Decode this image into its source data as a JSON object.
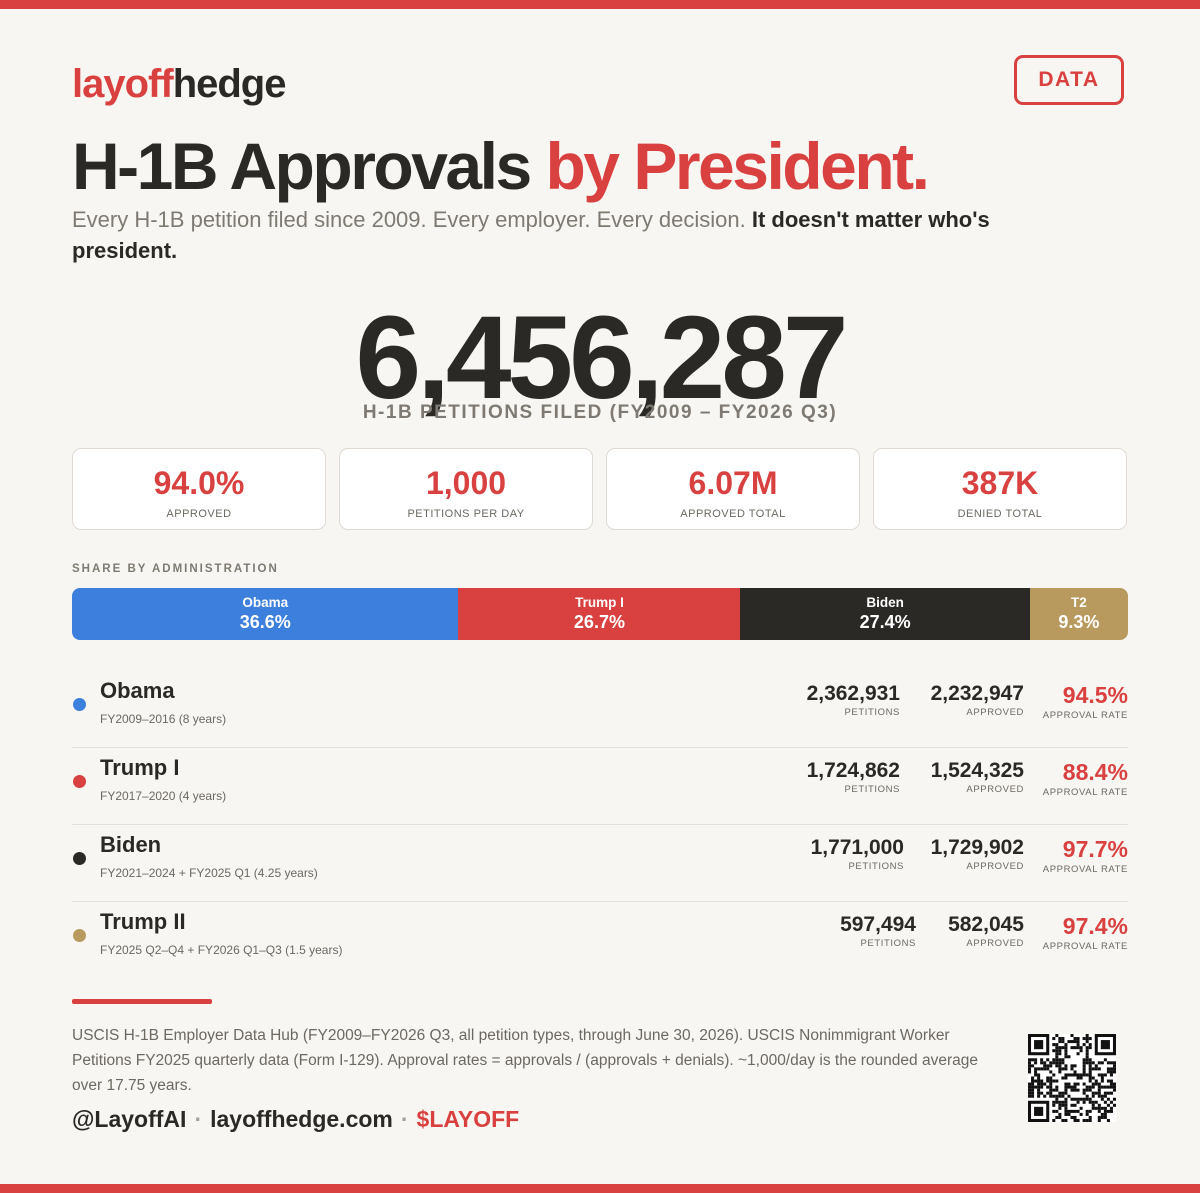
{
  "brand": {
    "part1": "layoff",
    "part2": "hedge"
  },
  "tag": "DATA",
  "title": {
    "main": "H-1B Approvals ",
    "highlight": "by President."
  },
  "subtitle": {
    "normal": "Every H-1B petition filed since 2009. Every employer. Every decision. ",
    "bold": "It doesn't matter who's president."
  },
  "headline": {
    "value": "6,456,287",
    "label": "H-1B PETITIONS FILED (FY2009 – FY2026 Q3)"
  },
  "stats": [
    {
      "value": "94.0%",
      "label": "APPROVED"
    },
    {
      "value": "1,000",
      "label": "PETITIONS PER DAY"
    },
    {
      "value": "6.07M",
      "label": "APPROVED TOTAL"
    },
    {
      "value": "387K",
      "label": "DENIED TOTAL"
    }
  ],
  "share_label": "SHARE BY ADMINISTRATION",
  "chart_data": {
    "type": "bar",
    "orientation": "horizontal-stacked-100",
    "title": "SHARE BY ADMINISTRATION",
    "categories": [
      "Obama",
      "Trump I",
      "Biden",
      "T2"
    ],
    "values": [
      36.6,
      26.7,
      27.4,
      9.3
    ],
    "value_labels": [
      "36.6%",
      "26.7%",
      "27.4%",
      "9.3%"
    ],
    "unit": "%",
    "colors": [
      "#3d7fdc",
      "#d94141",
      "#2b2926",
      "#b89a5e"
    ]
  },
  "administrations": [
    {
      "name": "Obama",
      "period": "FY2009–2016 (8 years)",
      "color": "#3d7fdc",
      "petitions": "2,362,931",
      "approved": "2,232,947",
      "rate": "94.5%"
    },
    {
      "name": "Trump I",
      "period": "FY2017–2020 (4 years)",
      "color": "#d94141",
      "petitions": "1,724,862",
      "approved": "1,524,325",
      "rate": "88.4%"
    },
    {
      "name": "Biden",
      "period": "FY2021–2024 + FY2025 Q1 (4.25 years)",
      "color": "#2b2926",
      "petitions": "1,771,000",
      "approved": "1,729,902",
      "rate": "97.7%"
    },
    {
      "name": "Trump II",
      "period": "FY2025 Q2–Q4 + FY2026 Q1–Q3 (1.5 years)",
      "color": "#b89a5e",
      "petitions": "597,494",
      "approved": "582,045",
      "rate": "97.4%"
    }
  ],
  "column_labels": {
    "petitions": "PETITIONS",
    "approved": "APPROVED",
    "rate": "APPROVAL RATE"
  },
  "source": "USCIS H-1B Employer Data Hub (FY2009–FY2026 Q3, all petition types, through June 30, 2026). USCIS Nonimmigrant Worker Petitions FY2025 quarterly data (Form I-129). Approval rates = approvals / (approvals + denials). ~1,000/day is the rounded average over 17.75 years.",
  "footer": {
    "handle": "@LayoffAI",
    "site": "layoffhedge.com",
    "ticker": "$LAYOFF",
    "separator": "·"
  },
  "colors": {
    "accent": "#d94141",
    "text": "#2b2926",
    "muted": "#7e7a73",
    "background": "#f8f6f2"
  }
}
